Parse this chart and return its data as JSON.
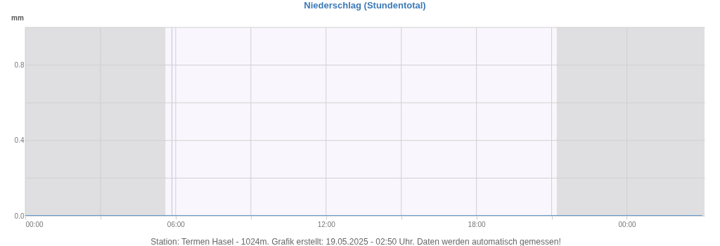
{
  "chart_data": {
    "type": "line",
    "title": "Niederschlag (Stundentotal)",
    "ylabel": "mm",
    "x": [
      0,
      27
    ],
    "series": [
      {
        "color": "#3f87c7",
        "values": [
          0,
          0
        ]
      }
    ],
    "xlim": [
      0,
      27.1
    ],
    "xticks": [
      {
        "value": 0,
        "label": "00:00"
      },
      {
        "value": 3,
        "label": null
      },
      {
        "value": 6,
        "label": "06:00"
      },
      {
        "value": 9,
        "label": null
      },
      {
        "value": 12,
        "label": "12:00"
      },
      {
        "value": 15,
        "label": null
      },
      {
        "value": 18,
        "label": "18:00"
      },
      {
        "value": 21,
        "label": null
      },
      {
        "value": 24,
        "label": "00:00"
      }
    ],
    "ylim": [
      0,
      1
    ],
    "yticks": [
      {
        "value": 0,
        "label": "0.0"
      },
      {
        "value": 0.2,
        "label": null
      },
      {
        "value": 0.4,
        "label": "0.4"
      },
      {
        "value": 0.6,
        "label": null
      },
      {
        "value": 0.8,
        "label": "0.8"
      },
      {
        "value": 1,
        "label": null
      }
    ],
    "bands": [
      {
        "axis": "x",
        "from": 0,
        "to": 5.6,
        "color": "#dfdfe2"
      },
      {
        "axis": "x",
        "from": 5.6,
        "to": 21.2,
        "color": "#f9f7fd"
      },
      {
        "axis": "x",
        "from": 21.2,
        "to": 27.1,
        "color": "#dfdfe2"
      }
    ],
    "ref_lines": [
      {
        "axis": "x",
        "value": 5.85,
        "color": "#d4cfe2"
      }
    ],
    "grid": true,
    "marker": "none",
    "line_style": "solid",
    "annotations": [
      "Station: Termen Hasel - 1024m. Grafik erstellt: 19.05.2025 - 02:50 Uhr. Daten werden automatisch gemessen!"
    ]
  }
}
